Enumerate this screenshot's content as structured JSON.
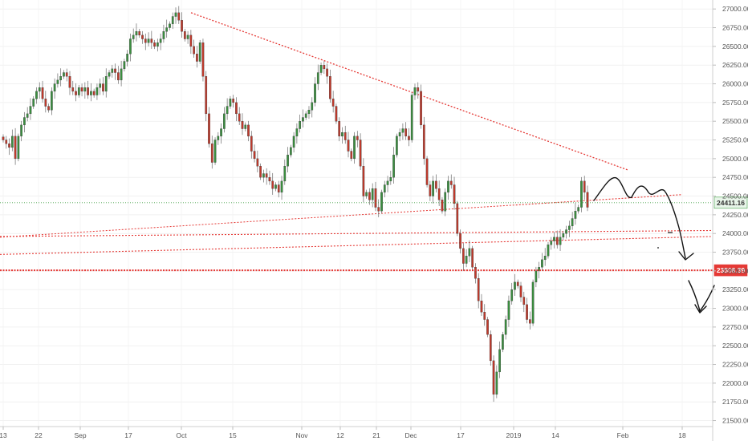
{
  "chart_data": {
    "type": "candlestick",
    "x_tick_labels": [
      "13",
      "22",
      "Sep",
      "17",
      "Oct",
      "15",
      "Nov",
      "12",
      "21",
      "Dec",
      "17",
      "2019",
      "14",
      "Feb",
      "18"
    ],
    "y_tick_labels": [
      "21500.00",
      "21750.00",
      "22000.00",
      "22250.00",
      "22500.00",
      "22750.00",
      "23000.00",
      "23250.00",
      "23500.00",
      "23750.00",
      "24000.00",
      "24250.00",
      "24500.00",
      "24750.00",
      "25000.00",
      "25250.00",
      "25500.00",
      "25750.00",
      "26000.00",
      "26250.00",
      "26500.00",
      "26750.00",
      "27000.00"
    ],
    "ylim": [
      21420,
      27120
    ],
    "grid": true,
    "colors": {
      "up": "#3a8f3f",
      "down": "#c0392b",
      "trendline": "#e53935",
      "current_line": "#43a047",
      "drawing": "#111111",
      "axis_text": "#555555"
    },
    "candles_close": [
      25250,
      25200,
      25150,
      25300,
      25000,
      25300,
      25450,
      25550,
      25600,
      25700,
      25800,
      25900,
      25950,
      25800,
      25700,
      25650,
      25900,
      26000,
      26050,
      26100,
      26150,
      26100,
      25950,
      25900,
      25850,
      25950,
      25900,
      25950,
      25850,
      25900,
      25850,
      25950,
      26000,
      25900,
      26100,
      26150,
      26200,
      26150,
      26050,
      26200,
      26300,
      26400,
      26600,
      26650,
      26700,
      26650,
      26600,
      26550,
      26600,
      26550,
      26500,
      26550,
      26600,
      26700,
      26750,
      26800,
      26900,
      26950,
      26850,
      26700,
      26600,
      26650,
      26500,
      26400,
      26300,
      26550,
      26100,
      25600,
      25200,
      24950,
      25250,
      25300,
      25400,
      25600,
      25700,
      25800,
      25750,
      25600,
      25500,
      25400,
      25450,
      25300,
      25100,
      25000,
      24900,
      24750,
      24800,
      24750,
      24700,
      24600,
      24650,
      24550,
      24700,
      24900,
      25050,
      25150,
      25300,
      25400,
      25500,
      25550,
      25600,
      25650,
      25750,
      26000,
      26150,
      26250,
      26200,
      26100,
      25800,
      25700,
      25500,
      25300,
      25350,
      25250,
      25100,
      25000,
      25300,
      25250,
      24900,
      24500,
      24550,
      24450,
      24600,
      24350,
      24300,
      24550,
      24650,
      24700,
      24750,
      25050,
      25300,
      25350,
      25400,
      25300,
      25250,
      25850,
      25950,
      25900,
      25450,
      25000,
      24650,
      24500,
      24700,
      24600,
      24450,
      24300,
      24550,
      24700,
      24650,
      24400,
      24000,
      23800,
      23600,
      23700,
      23800,
      23550,
      23400,
      23100,
      22950,
      22850,
      22650,
      22300,
      21850,
      22150,
      22450,
      22650,
      22850,
      23100,
      23250,
      23350,
      23300,
      23150,
      23050,
      22850,
      22800,
      23350,
      23500,
      23550,
      23650,
      23700,
      23850,
      23900,
      23950,
      23850,
      23950,
      24000,
      24050,
      24100,
      24200,
      24300,
      24350,
      24700,
      24550,
      24350
    ],
    "candles_open_offset": 90,
    "trendlines": [
      {
        "from": [
          235,
          25720
        ],
        "to": [
          330,
          27000
        ]
      },
      {
        "from": [
          0,
          23900
        ],
        "to": [
          932,
          24450
        ]
      },
      {
        "from": [
          0,
          23680
        ],
        "to": [
          932,
          24050
        ]
      },
      {
        "from": [
          0,
          24300
        ],
        "to": [
          932,
          24680
        ]
      }
    ],
    "horizontal_levels": [
      {
        "value": 24411.16,
        "label": "24411.16",
        "style": "dotted",
        "color": "#43a047"
      },
      {
        "value": 23508.39,
        "label": "23508.39",
        "style": "dotted",
        "color": "#e53935"
      }
    ],
    "annotations": [
      "hand-drawn projection curve with downward arrows"
    ]
  }
}
